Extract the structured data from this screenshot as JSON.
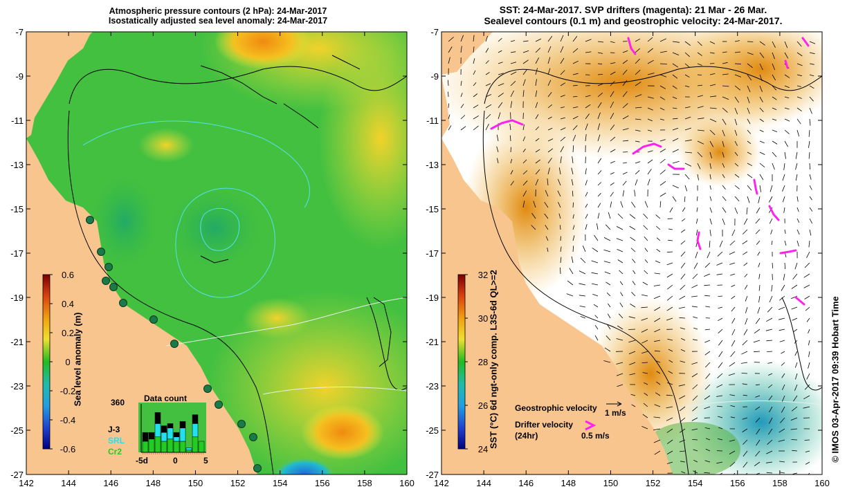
{
  "left_map": {
    "title_line1": "Atmospheric pressure contours (2 hPa): 24-Mar-2017",
    "title_line2": "Isostatically adjusted sea level anomaly: 24-Mar-2017",
    "colorbar_label": "Sea level anomaly (m)",
    "colorbar_ticks": [
      "0.6",
      "0.4",
      "0.2",
      "0",
      "-0.2",
      "-0.4",
      "-0.6"
    ],
    "data_count": {
      "title": "Data count",
      "max_label": "360",
      "x_ticks": [
        "-5d",
        "0",
        "5"
      ],
      "legend": [
        {
          "name": "J-3",
          "color": "#000000"
        },
        {
          "name": "SRL",
          "color": "#22e0f0"
        },
        {
          "name": "Cr2",
          "color": "#22cc22"
        }
      ],
      "bars": [
        {
          "day": -5,
          "j3": 0.2,
          "srl": 0.0,
          "cr2": 0.25
        },
        {
          "day": -4,
          "j3": 0.15,
          "srl": 0.0,
          "cr2": 0.3
        },
        {
          "day": -3,
          "j3": 0.25,
          "srl": 0.3,
          "cr2": 0.35
        },
        {
          "day": -2,
          "j3": 0.15,
          "srl": 0.2,
          "cr2": 0.25
        },
        {
          "day": -1,
          "j3": 0.1,
          "srl": 0.25,
          "cr2": 0.3
        },
        {
          "day": 0,
          "j3": 0.1,
          "srl": 0.1,
          "cr2": 0.25
        },
        {
          "day": 1,
          "j3": 0.15,
          "srl": 0.3,
          "cr2": 0.25
        },
        {
          "day": 2,
          "j3": 0.0,
          "srl": 0.05,
          "cr2": 0.05
        },
        {
          "day": 3,
          "j3": 0.2,
          "srl": 0.3,
          "cr2": 0.35
        },
        {
          "day": 4,
          "j3": 0.0,
          "srl": 0.0,
          "cr2": 0.25
        }
      ]
    }
  },
  "right_map": {
    "title_line1": "SST: 24-Mar-2017. SVP drifters (magenta): 21 Mar - 26 Mar.",
    "title_line2": "Sealevel contours (0.1 m) and geostrophic velocity: 24-Mar-2017.",
    "colorbar_label": "SST (°C) 6d ngt-only comp. L3S-6d QL>=2",
    "colorbar_ticks": [
      "32",
      "30",
      "28",
      "26",
      "24"
    ],
    "legend": {
      "geostrophic_label": "Geostrophic velocity",
      "geostrophic_scale": "1 m/s",
      "drifter_label": "Drifter velocity",
      "drifter_period": "(24hr)",
      "drifter_scale": "0.5 m/s"
    },
    "credit": "©  IMOS 03-Apr-2017 09:39 Hobart Time"
  },
  "axes": {
    "x_ticks": [
      "142",
      "144",
      "146",
      "148",
      "150",
      "152",
      "154",
      "156",
      "158",
      "160"
    ],
    "y_ticks": [
      "-7",
      "-9",
      "-11",
      "-13",
      "-15",
      "-17",
      "-19",
      "-21",
      "-23",
      "-25",
      "-27"
    ]
  },
  "colors": {
    "land": "#f9c58e",
    "sla_mid": "#33bb33",
    "sst_white": "#ffffff",
    "drifter": "#ff22ee"
  }
}
